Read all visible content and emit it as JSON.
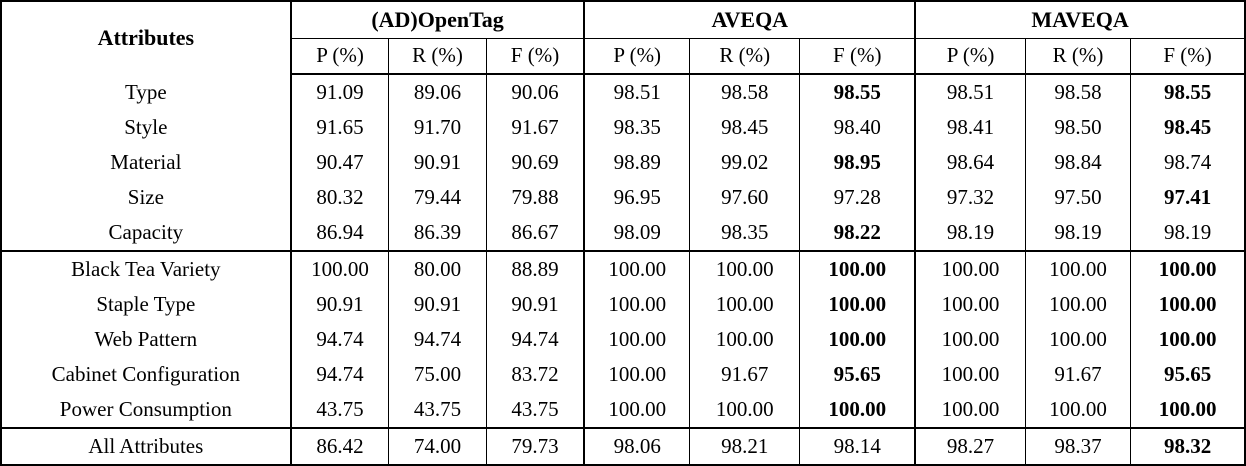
{
  "table": {
    "corner_header": "Attributes",
    "method_groups": [
      {
        "name": "(AD)OpenTag"
      },
      {
        "name": "AVEQA"
      },
      {
        "name": "MAVEQA"
      }
    ],
    "metric_headers": [
      "P (%)",
      "R (%)",
      "F (%)"
    ],
    "rows": [
      {
        "attribute": "Type",
        "values": [
          "91.09",
          "89.06",
          "90.06",
          "98.51",
          "98.58",
          "98.55",
          "98.51",
          "98.58",
          "98.55"
        ],
        "bold": [
          5,
          8
        ],
        "group_start": false
      },
      {
        "attribute": "Style",
        "values": [
          "91.65",
          "91.70",
          "91.67",
          "98.35",
          "98.45",
          "98.40",
          "98.41",
          "98.50",
          "98.45"
        ],
        "bold": [
          8
        ],
        "group_start": false
      },
      {
        "attribute": "Material",
        "values": [
          "90.47",
          "90.91",
          "90.69",
          "98.89",
          "99.02",
          "98.95",
          "98.64",
          "98.84",
          "98.74"
        ],
        "bold": [
          5
        ],
        "group_start": false
      },
      {
        "attribute": "Size",
        "values": [
          "80.32",
          "79.44",
          "79.88",
          "96.95",
          "97.60",
          "97.28",
          "97.32",
          "97.50",
          "97.41"
        ],
        "bold": [
          8
        ],
        "group_start": false
      },
      {
        "attribute": "Capacity",
        "values": [
          "86.94",
          "86.39",
          "86.67",
          "98.09",
          "98.35",
          "98.22",
          "98.19",
          "98.19",
          "98.19"
        ],
        "bold": [
          5
        ],
        "group_start": false
      },
      {
        "attribute": "Black Tea Variety",
        "values": [
          "100.00",
          "80.00",
          "88.89",
          "100.00",
          "100.00",
          "100.00",
          "100.00",
          "100.00",
          "100.00"
        ],
        "bold": [
          5,
          8
        ],
        "group_start": true
      },
      {
        "attribute": "Staple Type",
        "values": [
          "90.91",
          "90.91",
          "90.91",
          "100.00",
          "100.00",
          "100.00",
          "100.00",
          "100.00",
          "100.00"
        ],
        "bold": [
          5,
          8
        ],
        "group_start": false
      },
      {
        "attribute": "Web Pattern",
        "values": [
          "94.74",
          "94.74",
          "94.74",
          "100.00",
          "100.00",
          "100.00",
          "100.00",
          "100.00",
          "100.00"
        ],
        "bold": [
          5,
          8
        ],
        "group_start": false
      },
      {
        "attribute": "Cabinet Configuration",
        "values": [
          "94.74",
          "75.00",
          "83.72",
          "100.00",
          "91.67",
          "95.65",
          "100.00",
          "91.67",
          "95.65"
        ],
        "bold": [
          5,
          8
        ],
        "group_start": false
      },
      {
        "attribute": "Power Consumption",
        "values": [
          "43.75",
          "43.75",
          "43.75",
          "100.00",
          "100.00",
          "100.00",
          "100.00",
          "100.00",
          "100.00"
        ],
        "bold": [
          5,
          8
        ],
        "group_start": false
      },
      {
        "attribute": "All Attributes",
        "values": [
          "86.42",
          "74.00",
          "79.73",
          "98.06",
          "98.21",
          "98.14",
          "98.27",
          "98.37",
          "98.32"
        ],
        "bold": [
          8
        ],
        "group_start": true
      }
    ]
  }
}
